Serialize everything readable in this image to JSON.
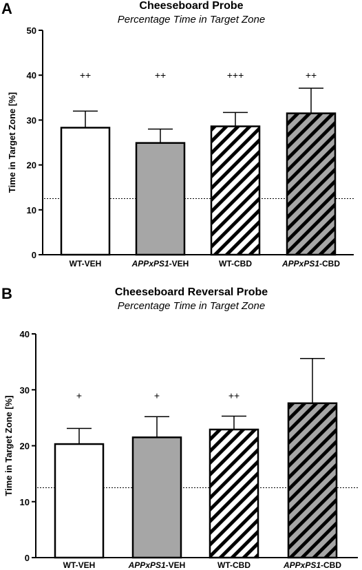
{
  "chart_data": [
    {
      "panel": "A",
      "type": "bar",
      "title": "Cheeseboard Probe",
      "subtitle": "Percentage Time in Target Zone",
      "ylabel": "Time in Target Zone [%]",
      "ylim": [
        0,
        50
      ],
      "yticks": [
        0,
        10,
        20,
        30,
        40,
        50
      ],
      "categories": [
        {
          "pre": "",
          "italic": "",
          "post": "WT-VEH"
        },
        {
          "pre": "",
          "italic": "APPxPS1",
          "post": "-VEH"
        },
        {
          "pre": "",
          "italic": "",
          "post": "WT-CBD"
        },
        {
          "pre": "",
          "italic": "APPxPS1",
          "post": "-CBD"
        }
      ],
      "values": [
        28.3,
        24.9,
        28.6,
        31.5
      ],
      "errors": [
        3.7,
        3.1,
        3.1,
        5.6
      ],
      "annotations": [
        "++",
        "++",
        "+++",
        "++"
      ],
      "annotation_y": 40,
      "chance_level": 12.5,
      "fills": [
        "white",
        "gray",
        "white-hatch",
        "gray-hatch"
      ]
    },
    {
      "panel": "B",
      "type": "bar",
      "title": "Cheeseboard Reversal Probe",
      "subtitle": "Percentage Time in Target Zone",
      "ylabel": "Time in Target Zone [%]",
      "ylim": [
        0,
        40
      ],
      "yticks": [
        0,
        10,
        20,
        30,
        40
      ],
      "categories": [
        {
          "pre": "",
          "italic": "",
          "post": "WT-VEH"
        },
        {
          "pre": "",
          "italic": "APPxPS1",
          "post": "-VEH"
        },
        {
          "pre": "",
          "italic": "",
          "post": "WT-CBD"
        },
        {
          "pre": "",
          "italic": "APPxPS1",
          "post": "-CBD"
        }
      ],
      "values": [
        20.3,
        21.5,
        22.9,
        27.6
      ],
      "errors": [
        2.8,
        3.7,
        2.4,
        8.0
      ],
      "annotations": [
        "+",
        "+",
        "++",
        ""
      ],
      "annotation_y": 29,
      "chance_level": 12.5,
      "fills": [
        "white",
        "gray",
        "white-hatch",
        "gray-hatch"
      ]
    }
  ],
  "colors": {
    "bar_gray": "#a6a6a6",
    "bar_white": "#ffffff",
    "stroke": "#000000"
  }
}
